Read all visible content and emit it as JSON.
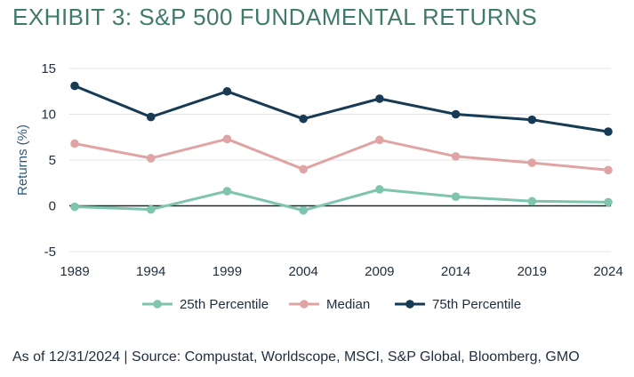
{
  "title": "EXHIBIT 3: S&P 500 FUNDAMENTAL RETURNS",
  "footnote": "As of 12/31/2024 | Source: Compustat, Worldscope, MSCI, S&P Global, Bloomberg, GMO",
  "chart_data": {
    "type": "line",
    "ylabel": "Returns (%)",
    "xlabel": "",
    "x": [
      "1989",
      "1994",
      "1999",
      "2004",
      "2009",
      "2014",
      "2019",
      "2024"
    ],
    "ylim": [
      -5,
      15
    ],
    "yticks": [
      15,
      10,
      5,
      0,
      -5
    ],
    "grid": true,
    "legend_position": "bottom",
    "series": [
      {
        "name": "25th Percentile",
        "color": "#7fc4ad",
        "values": [
          -0.1,
          -0.4,
          1.6,
          -0.5,
          1.8,
          1.0,
          0.5,
          0.4
        ]
      },
      {
        "name": "Median",
        "color": "#e0a4a4",
        "values": [
          6.8,
          5.2,
          7.3,
          4.0,
          7.2,
          5.4,
          4.7,
          3.9
        ]
      },
      {
        "name": "75th Percentile",
        "color": "#173a55",
        "values": [
          13.1,
          9.7,
          12.5,
          9.5,
          11.7,
          10.0,
          9.4,
          8.1
        ]
      }
    ]
  }
}
